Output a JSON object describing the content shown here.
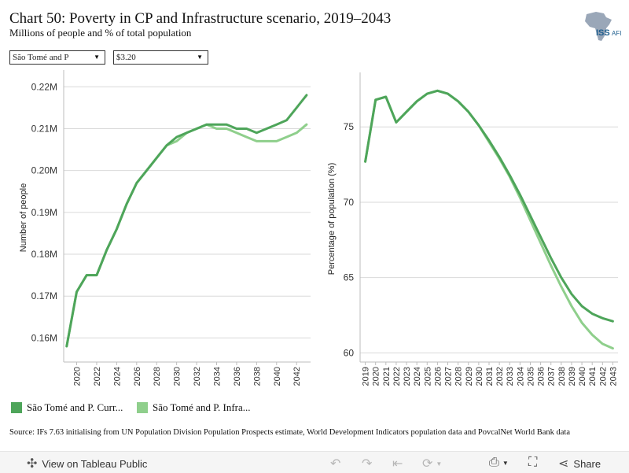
{
  "header": {
    "title": "Chart 50: Poverty in CP and Infrastructure scenario, 2019–2043",
    "subtitle": "Millions of people and % of total population"
  },
  "logo": {
    "text": "ISS",
    "text2": "AFI",
    "icon": "africa-map-logo"
  },
  "filters": {
    "country": {
      "value": "São Tomé and P",
      "icon": "chevron-down-icon"
    },
    "threshold": {
      "value": "$3.20",
      "icon": "chevron-down-icon"
    }
  },
  "legend": [
    {
      "label": "São Tomé and P. Curr...",
      "color": "#4ea55a"
    },
    {
      "label": "São Tomé and P. Infra...",
      "color": "#8fcf8c"
    }
  ],
  "source": "Source: IFs 7.63 initialising from UN Population Division Population Prospects estimate, World Development Indicators population data and PovcalNet World Bank data",
  "toolbar": {
    "view_label": "View on Tableau Public",
    "share_label": "Share",
    "icons": [
      "tableau-icon",
      "undo-icon",
      "redo-icon",
      "revert-icon",
      "refresh-icon",
      "download-icon",
      "fullscreen-icon",
      "share-icon"
    ]
  },
  "chart_data": [
    {
      "type": "line",
      "ylabel": "Number of people",
      "ylim": [
        0.155,
        0.2225
      ],
      "yticks": [
        0.16,
        0.17,
        0.18,
        0.19,
        0.2,
        0.21,
        0.22
      ],
      "ytick_labels": [
        "0.16M",
        "0.17M",
        "0.18M",
        "0.19M",
        "0.20M",
        "0.21M",
        "0.22M"
      ],
      "xticks": [
        2020,
        2022,
        2024,
        2026,
        2028,
        2030,
        2032,
        2034,
        2036,
        2038,
        2040,
        2042
      ],
      "xlim": [
        2018.7,
        2043.4
      ],
      "grid": "horizontal",
      "x": [
        2019,
        2020,
        2021,
        2022,
        2023,
        2024,
        2025,
        2026,
        2027,
        2028,
        2029,
        2030,
        2031,
        2032,
        2033,
        2034,
        2035,
        2036,
        2037,
        2038,
        2039,
        2040,
        2041,
        2042,
        2043
      ],
      "series": [
        {
          "name": "São Tomé and P. Curr...",
          "color": "#4ea55a",
          "values": [
            0.158,
            0.171,
            0.175,
            0.175,
            0.181,
            0.186,
            0.192,
            0.197,
            0.2,
            0.203,
            0.206,
            0.208,
            0.209,
            0.21,
            0.211,
            0.211,
            0.211,
            0.21,
            0.21,
            0.209,
            0.21,
            0.211,
            0.212,
            0.215,
            0.218
          ]
        },
        {
          "name": "São Tomé and P. Infra...",
          "color": "#8fcf8c",
          "values": [
            0.158,
            0.171,
            0.175,
            0.175,
            0.181,
            0.186,
            0.192,
            0.197,
            0.2,
            0.203,
            0.206,
            0.207,
            0.209,
            0.21,
            0.211,
            0.21,
            0.21,
            0.209,
            0.208,
            0.207,
            0.207,
            0.207,
            0.208,
            0.209,
            0.211
          ]
        }
      ]
    },
    {
      "type": "line",
      "ylabel": "Percentage of population (%)",
      "ylim": [
        59.6,
        78.2
      ],
      "yticks": [
        60,
        65,
        70,
        75
      ],
      "ytick_labels": [
        "60",
        "65",
        "70",
        "75"
      ],
      "xticks": [
        2019,
        2020,
        2021,
        2022,
        2023,
        2024,
        2025,
        2026,
        2027,
        2028,
        2029,
        2030,
        2031,
        2032,
        2033,
        2034,
        2035,
        2036,
        2037,
        2038,
        2039,
        2040,
        2041,
        2042,
        2043
      ],
      "xlim": [
        2018.5,
        2043.5
      ],
      "grid": "horizontal",
      "x": [
        2019,
        2020,
        2021,
        2022,
        2023,
        2024,
        2025,
        2026,
        2027,
        2028,
        2029,
        2030,
        2031,
        2032,
        2033,
        2034,
        2035,
        2036,
        2037,
        2038,
        2039,
        2040,
        2041,
        2042,
        2043
      ],
      "series": [
        {
          "name": "São Tomé and P. Curr...",
          "color": "#4ea55a",
          "values": [
            72.7,
            76.8,
            77.0,
            75.3,
            76.0,
            76.7,
            77.2,
            77.4,
            77.2,
            76.7,
            76.0,
            75.1,
            74.1,
            73.0,
            71.8,
            70.5,
            69.1,
            67.7,
            66.3,
            65.0,
            63.9,
            63.1,
            62.6,
            62.3,
            62.1
          ]
        },
        {
          "name": "São Tomé and P. Infra...",
          "color": "#8fcf8c",
          "values": [
            72.7,
            76.8,
            77.0,
            75.3,
            76.0,
            76.7,
            77.2,
            77.4,
            77.2,
            76.7,
            76.0,
            75.1,
            74.0,
            72.9,
            71.7,
            70.3,
            68.8,
            67.3,
            65.8,
            64.4,
            63.1,
            62.0,
            61.2,
            60.6,
            60.3
          ]
        }
      ]
    }
  ]
}
